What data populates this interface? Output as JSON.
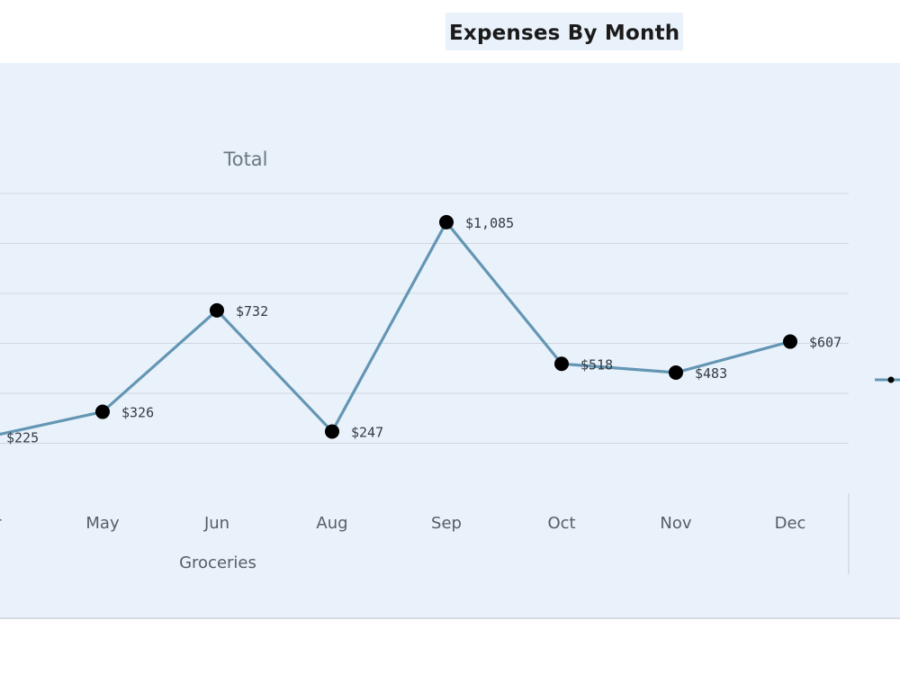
{
  "chart_data": {
    "type": "line",
    "title": "Expenses By Month",
    "series_title": "Total",
    "xlabel": "Groceries",
    "categories": [
      "Apr",
      "May",
      "Jun",
      "Aug",
      "Sep",
      "Oct",
      "Nov",
      "Dec"
    ],
    "series": [
      {
        "values": [
          225,
          326,
          732,
          247,
          1085,
          518,
          483,
          607
        ],
        "data_labels": [
          "$225",
          "$326",
          "$732",
          "$247",
          "$1,085",
          "$518",
          "$483",
          "$607"
        ]
      }
    ],
    "ylim": [
      0,
      1200
    ],
    "grid": true,
    "legend": "right",
    "colors": {
      "line": "#6496b4",
      "marker": "#000000",
      "background": "#e9f2fb",
      "grid": "#cfd6dc"
    }
  }
}
